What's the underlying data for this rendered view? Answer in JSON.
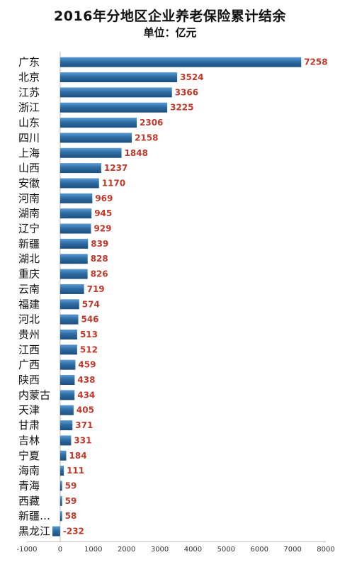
{
  "header": {
    "title": "2016年分地区企业养老保险累计结余",
    "subtitle": "单位：亿元"
  },
  "chart_data": {
    "type": "bar",
    "orientation": "horizontal",
    "title": "2016年分地区企业养老保险累计结余",
    "subtitle": "单位：亿元",
    "xlabel": "",
    "ylabel": "",
    "xlim": [
      -1000,
      8000
    ],
    "xticks": [
      -1000,
      0,
      1000,
      2000,
      3000,
      4000,
      5000,
      6000,
      7000,
      8000
    ],
    "grid": false,
    "legend": "none",
    "bar_color": "#2e6da4",
    "value_label_color": "#c0392b",
    "categories": [
      "广东",
      "北京",
      "江苏",
      "浙江",
      "山东",
      "四川",
      "上海",
      "山西",
      "安徽",
      "河南",
      "湖南",
      "辽宁",
      "新疆",
      "湖北",
      "重庆",
      "云南",
      "福建",
      "河北",
      "贵州",
      "江西",
      "广西",
      "陕西",
      "内蒙古",
      "天津",
      "甘肃",
      "吉林",
      "宁夏",
      "海南",
      "青海",
      "西藏",
      "新疆…",
      "黑龙江"
    ],
    "values": [
      7258,
      3524,
      3366,
      3225,
      2306,
      2158,
      1848,
      1237,
      1170,
      969,
      945,
      929,
      839,
      828,
      826,
      719,
      574,
      546,
      513,
      512,
      459,
      438,
      434,
      405,
      371,
      331,
      184,
      111,
      59,
      59,
      58,
      -232
    ]
  }
}
